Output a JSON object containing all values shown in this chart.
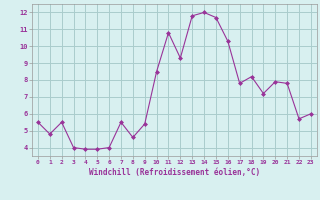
{
  "x": [
    0,
    1,
    2,
    3,
    4,
    5,
    6,
    7,
    8,
    9,
    10,
    11,
    12,
    13,
    14,
    15,
    16,
    17,
    18,
    19,
    20,
    21,
    22,
    23
  ],
  "y": [
    5.5,
    4.8,
    5.5,
    4.0,
    3.9,
    3.9,
    4.0,
    5.5,
    4.6,
    5.4,
    8.5,
    10.8,
    9.3,
    11.8,
    12.0,
    11.7,
    10.3,
    7.8,
    8.2,
    7.2,
    7.9,
    7.8,
    5.7,
    6.0
  ],
  "line_color": "#993399",
  "marker": "D",
  "marker_size": 2,
  "bg_color": "#d8f0f0",
  "grid_color": "#aacccc",
  "xlabel": "Windchill (Refroidissement éolien,°C)",
  "xlabel_color": "#993399",
  "tick_color": "#993399",
  "axis_color": "#999999",
  "ylim": [
    3.5,
    12.5
  ],
  "yticks": [
    4,
    5,
    6,
    7,
    8,
    9,
    10,
    11,
    12
  ],
  "xlim": [
    -0.5,
    23.5
  ],
  "xticks": [
    0,
    1,
    2,
    3,
    4,
    5,
    6,
    7,
    8,
    9,
    10,
    11,
    12,
    13,
    14,
    15,
    16,
    17,
    18,
    19,
    20,
    21,
    22,
    23
  ]
}
